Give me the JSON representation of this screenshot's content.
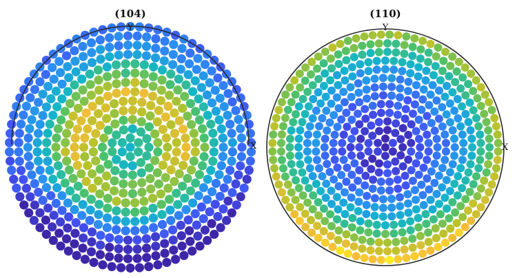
{
  "chart_data": [
    {
      "type": "scatter",
      "subtype": "pole-figure",
      "title": "(104)",
      "xlabel": "X",
      "ylabel": "Y",
      "hemisphere": "full disk drawn, upper-half rim line",
      "colormap": "parula",
      "color_stops": [
        "#3e26a8",
        "#4255f6",
        "#2c8ef2",
        "#14b5c9",
        "#4ac16d",
        "#b8c22c",
        "#f7bd3a",
        "#f9fb15"
      ],
      "intensity_model": {
        "description": "relative intensity (0=low, 1=high) vs polar radius r (0=center, 1=rim) and azimuth",
        "radial_profile": [
          {
            "r": 0.0,
            "value": 0.46
          },
          {
            "r": 0.15,
            "value": 0.5
          },
          {
            "r": 0.3,
            "value": 0.72
          },
          {
            "r": 0.45,
            "value": 0.8
          },
          {
            "r": 0.6,
            "value": 0.6
          },
          {
            "r": 0.75,
            "value": 0.36
          },
          {
            "r": 0.9,
            "value": 0.24
          },
          {
            "r": 1.0,
            "value": 0.2
          }
        ],
        "lower_half_damping": 0.55
      }
    },
    {
      "type": "scatter",
      "subtype": "pole-figure",
      "title": "(110)",
      "xlabel": "X",
      "ylabel": "Y",
      "hemisphere": "full disk",
      "colormap": "parula",
      "color_stops": [
        "#3e26a8",
        "#4255f6",
        "#2c8ef2",
        "#14b5c9",
        "#4ac16d",
        "#b8c22c",
        "#f7bd3a",
        "#f9fb15"
      ],
      "intensity_model": {
        "description": "relative intensity (0=low, 1=high) vs polar radius r (0=center, 1=rim)",
        "radial_profile": [
          {
            "r": 0.0,
            "value": 0.04
          },
          {
            "r": 0.25,
            "value": 0.1
          },
          {
            "r": 0.5,
            "value": 0.22
          },
          {
            "r": 0.7,
            "value": 0.36
          },
          {
            "r": 0.85,
            "value": 0.52
          },
          {
            "r": 1.0,
            "value": 0.7
          }
        ],
        "lower_half_boost": 0.25
      }
    }
  ]
}
